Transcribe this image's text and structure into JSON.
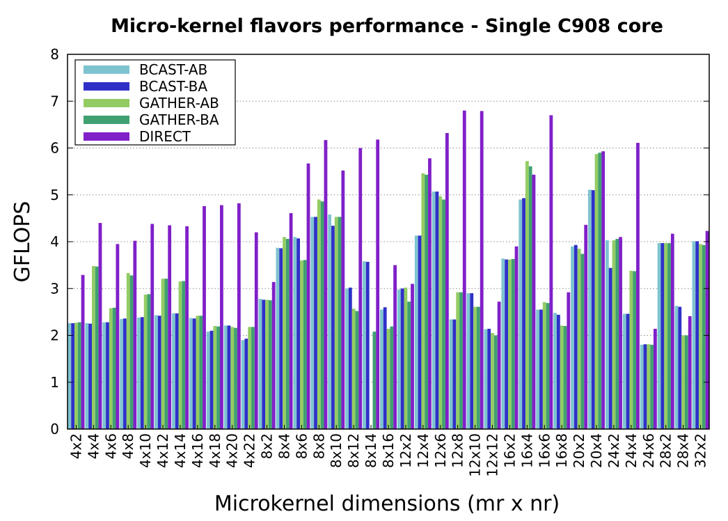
{
  "chart_data": {
    "type": "bar",
    "title": "Micro-kernel flavors performance - Single C908 core",
    "xlabel": "Microkernel dimensions (mr x nr)",
    "ylabel": "GFLOPS",
    "ylim": [
      0,
      8
    ],
    "yticks": [
      "0",
      "1",
      "2",
      "3",
      "4",
      "5",
      "6",
      "7",
      "8"
    ],
    "grid": "horizontal dotted",
    "legend_position": "top-left",
    "categories": [
      "4x2",
      "4x4",
      "4x6",
      "4x8",
      "4x10",
      "4x12",
      "4x14",
      "4x16",
      "4x18",
      "4x20",
      "4x22",
      "8x2",
      "8x4",
      "8x6",
      "8x8",
      "8x10",
      "8x12",
      "8x14",
      "8x16",
      "12x2",
      "12x4",
      "12x6",
      "12x8",
      "12x10",
      "12x12",
      "16x2",
      "16x4",
      "16x6",
      "16x8",
      "20x2",
      "20x4",
      "24x2",
      "24x4",
      "24x6",
      "28x2",
      "28x4",
      "32x2"
    ],
    "series": [
      {
        "name": "BCAST-AB",
        "color": "#7ec4d0",
        "values": [
          2.26,
          2.26,
          2.28,
          2.35,
          2.38,
          2.43,
          2.47,
          2.37,
          2.08,
          2.21,
          1.9,
          2.78,
          3.87,
          4.1,
          4.53,
          4.58,
          3.0,
          3.58,
          2.55,
          2.98,
          4.13,
          5.07,
          2.34,
          2.9,
          2.13,
          3.64,
          4.9,
          2.55,
          2.48,
          3.9,
          5.11,
          4.03,
          2.46,
          1.8,
          3.97,
          2.63,
          4.01
        ]
      },
      {
        "name": "BCAST-BA",
        "color": "#3030c8",
        "values": [
          2.26,
          2.25,
          2.28,
          2.36,
          2.39,
          2.42,
          2.47,
          2.36,
          2.1,
          2.21,
          1.93,
          2.76,
          3.86,
          4.07,
          4.53,
          4.34,
          3.02,
          3.57,
          2.6,
          3.0,
          4.13,
          5.07,
          2.34,
          2.9,
          2.14,
          3.62,
          4.93,
          2.55,
          2.44,
          3.93,
          5.1,
          3.44,
          2.46,
          1.81,
          3.97,
          2.61,
          4.01
        ]
      },
      {
        "name": "GATHER-AB",
        "color": "#94cc64",
        "values": [
          2.27,
          3.48,
          2.58,
          3.33,
          2.87,
          3.21,
          3.15,
          2.42,
          2.2,
          2.18,
          2.18,
          2.76,
          4.1,
          3.6,
          4.9,
          4.53,
          2.57,
          0,
          2.14,
          3.02,
          5.46,
          4.97,
          2.92,
          2.61,
          2.05,
          3.62,
          5.72,
          2.71,
          2.21,
          3.85,
          5.87,
          4.03,
          3.38,
          1.81,
          3.97,
          2.0,
          3.95
        ]
      },
      {
        "name": "GATHER-BA",
        "color": "#40a070",
        "values": [
          2.28,
          3.47,
          2.59,
          3.28,
          2.88,
          3.21,
          3.16,
          2.42,
          2.19,
          2.16,
          2.18,
          2.75,
          4.06,
          3.61,
          4.86,
          4.53,
          2.52,
          2.08,
          2.19,
          2.72,
          5.43,
          4.9,
          2.92,
          2.61,
          2.0,
          3.63,
          5.61,
          2.69,
          2.2,
          3.74,
          5.9,
          4.06,
          3.37,
          1.8,
          3.97,
          2.0,
          3.93
        ]
      },
      {
        "name": "DIRECT",
        "color": "#8020c8",
        "values": [
          3.29,
          4.4,
          3.95,
          4.02,
          4.38,
          4.35,
          4.33,
          4.76,
          4.78,
          4.82,
          4.2,
          3.14,
          4.61,
          5.67,
          6.17,
          5.52,
          6.0,
          6.18,
          3.5,
          3.1,
          5.78,
          6.32,
          6.8,
          6.79,
          2.72,
          3.9,
          5.43,
          6.7,
          2.92,
          4.36,
          5.93,
          4.1,
          6.11,
          2.14,
          4.17,
          2.41,
          4.23
        ]
      }
    ]
  }
}
